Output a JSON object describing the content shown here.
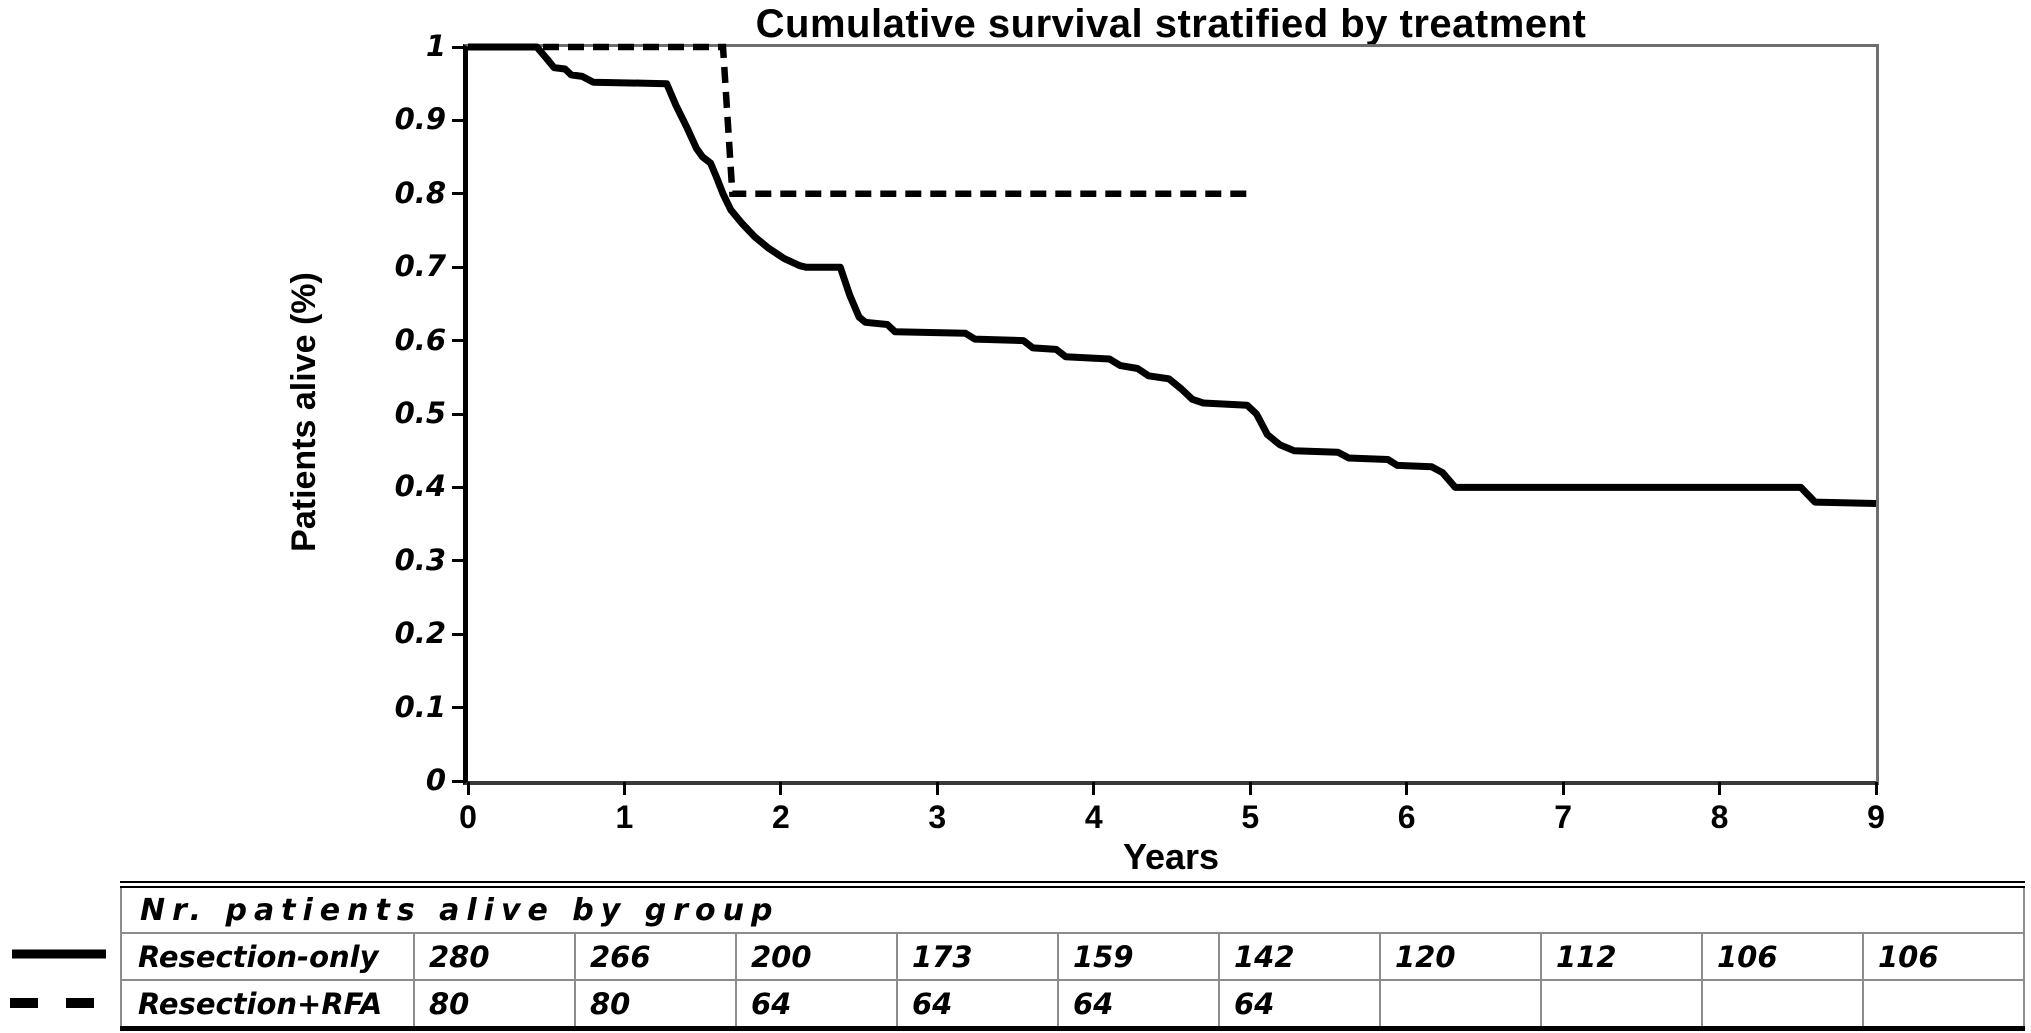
{
  "chart_data": {
    "type": "line",
    "subtype": "kaplan-meier-step",
    "title": "Cumulative survival stratified by treatment",
    "xlabel": "Years",
    "ylabel": "Patients alive (%)",
    "xlim": [
      0,
      9
    ],
    "ylim": [
      0,
      1
    ],
    "grid": false,
    "legend_position": "left-of-risk-table",
    "xticks": [
      {
        "label": "0",
        "value": 0
      },
      {
        "label": "1",
        "value": 1
      },
      {
        "label": "2",
        "value": 2
      },
      {
        "label": "3",
        "value": 3
      },
      {
        "label": "4",
        "value": 4
      },
      {
        "label": "5",
        "value": 5
      },
      {
        "label": "6",
        "value": 6
      },
      {
        "label": "7",
        "value": 7
      },
      {
        "label": "8",
        "value": 8
      },
      {
        "label": "9",
        "value": 9
      }
    ],
    "yticks": [
      {
        "label": "1",
        "value": 1.0
      },
      {
        "label": "0.9",
        "value": 0.9
      },
      {
        "label": "0.8",
        "value": 0.8
      },
      {
        "label": "0.7",
        "value": 0.7
      },
      {
        "label": "0.6",
        "value": 0.6
      },
      {
        "label": "0.5",
        "value": 0.5
      },
      {
        "label": "0.4",
        "value": 0.4
      },
      {
        "label": "0.3",
        "value": 0.3
      },
      {
        "label": "0.2",
        "value": 0.2
      },
      {
        "label": "0.1",
        "value": 0.1
      },
      {
        "label": "0",
        "value": 0.0
      }
    ],
    "series": [
      {
        "name": "Resection-only",
        "line_style": "solid",
        "color": "#000000",
        "points": [
          [
            0,
            1.0
          ],
          [
            0.44,
            1.0
          ],
          [
            0.5,
            0.985
          ],
          [
            0.55,
            0.972
          ],
          [
            0.62,
            0.97
          ],
          [
            0.66,
            0.962
          ],
          [
            0.73,
            0.96
          ],
          [
            0.8,
            0.952
          ],
          [
            1.27,
            0.95
          ],
          [
            1.33,
            0.92
          ],
          [
            1.4,
            0.89
          ],
          [
            1.46,
            0.862
          ],
          [
            1.5,
            0.85
          ],
          [
            1.55,
            0.842
          ],
          [
            1.59,
            0.822
          ],
          [
            1.63,
            0.8
          ],
          [
            1.68,
            0.778
          ],
          [
            1.75,
            0.76
          ],
          [
            1.83,
            0.742
          ],
          [
            1.92,
            0.726
          ],
          [
            2.02,
            0.712
          ],
          [
            2.12,
            0.702
          ],
          [
            2.16,
            0.7
          ],
          [
            2.38,
            0.7
          ],
          [
            2.44,
            0.662
          ],
          [
            2.5,
            0.632
          ],
          [
            2.54,
            0.625
          ],
          [
            2.68,
            0.622
          ],
          [
            2.73,
            0.612
          ],
          [
            3.18,
            0.61
          ],
          [
            3.24,
            0.602
          ],
          [
            3.55,
            0.6
          ],
          [
            3.61,
            0.59
          ],
          [
            3.76,
            0.588
          ],
          [
            3.82,
            0.578
          ],
          [
            4.1,
            0.575
          ],
          [
            4.17,
            0.566
          ],
          [
            4.28,
            0.562
          ],
          [
            4.35,
            0.552
          ],
          [
            4.48,
            0.548
          ],
          [
            4.56,
            0.534
          ],
          [
            4.63,
            0.52
          ],
          [
            4.7,
            0.515
          ],
          [
            4.98,
            0.512
          ],
          [
            5.04,
            0.5
          ],
          [
            5.11,
            0.472
          ],
          [
            5.19,
            0.458
          ],
          [
            5.28,
            0.45
          ],
          [
            5.56,
            0.448
          ],
          [
            5.63,
            0.44
          ],
          [
            5.88,
            0.438
          ],
          [
            5.94,
            0.43
          ],
          [
            6.16,
            0.428
          ],
          [
            6.23,
            0.42
          ],
          [
            6.31,
            0.4
          ],
          [
            8.52,
            0.4
          ],
          [
            8.61,
            0.38
          ],
          [
            9,
            0.378
          ]
        ]
      },
      {
        "name": "Resection+RFA",
        "line_style": "dashed",
        "color": "#000000",
        "points": [
          [
            0,
            1.0
          ],
          [
            1.63,
            1.0
          ],
          [
            1.69,
            0.8
          ],
          [
            4.98,
            0.8
          ]
        ]
      }
    ]
  },
  "risk_table": {
    "header": "Nr. patients alive by group",
    "rows": [
      {
        "label": "Resection-only",
        "legend_style": "solid",
        "values": [
          "280",
          "266",
          "200",
          "173",
          "159",
          "142",
          "120",
          "112",
          "106",
          "106"
        ]
      },
      {
        "label": "Resection+RFA",
        "legend_style": "dashed",
        "values": [
          "80",
          "80",
          "64",
          "64",
          "64",
          "64",
          "",
          "",
          "",
          ""
        ]
      }
    ]
  },
  "colors": {
    "curve": "#000000",
    "plot_border": "#6e6e6e",
    "axis": "#000000",
    "table_grid": "#8c8c8c",
    "background": "#ffffff"
  }
}
